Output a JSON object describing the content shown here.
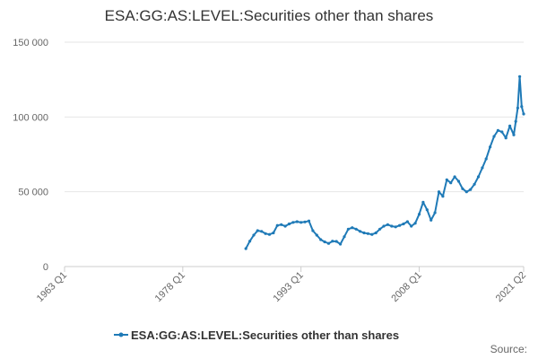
{
  "source_label": "Source:",
  "chart_data": {
    "type": "line",
    "title": "ESA:GG:AS:LEVEL:Securities other than shares",
    "xlabel": "",
    "ylabel": "",
    "x_tick_labels": [
      "1963 Q1",
      "1978 Q1",
      "1993 Q1",
      "2008 Q1",
      "2021 Q2"
    ],
    "x_tick_years": [
      1963.0,
      1978.0,
      1993.0,
      2008.0,
      2021.25
    ],
    "ylim": [
      0,
      150000
    ],
    "y_ticks": [
      0,
      50000,
      100000,
      150000
    ],
    "y_tick_labels": [
      "0",
      "50 000",
      "100 000",
      "150 000"
    ],
    "grid": true,
    "legend_position": "bottom",
    "series": [
      {
        "name": "ESA:GG:AS:LEVEL:Securities other than shares",
        "color": "#1f7ab7",
        "x": [
          1986.0,
          1986.5,
          1987.0,
          1987.5,
          1988.0,
          1988.5,
          1989.0,
          1989.5,
          1990.0,
          1990.5,
          1991.0,
          1991.5,
          1992.0,
          1992.5,
          1993.0,
          1993.5,
          1994.0,
          1994.5,
          1995.0,
          1995.5,
          1996.0,
          1996.5,
          1997.0,
          1997.5,
          1998.0,
          1998.5,
          1999.0,
          1999.5,
          2000.0,
          2000.5,
          2001.0,
          2001.5,
          2002.0,
          2002.5,
          2003.0,
          2003.5,
          2004.0,
          2004.5,
          2005.0,
          2005.5,
          2006.0,
          2006.5,
          2007.0,
          2007.5,
          2008.0,
          2008.5,
          2009.0,
          2009.5,
          2010.0,
          2010.5,
          2011.0,
          2011.5,
          2012.0,
          2012.5,
          2013.0,
          2013.5,
          2014.0,
          2014.5,
          2015.0,
          2015.5,
          2016.0,
          2016.5,
          2017.0,
          2017.5,
          2018.0,
          2018.5,
          2019.0,
          2019.5,
          2020.0,
          2020.25,
          2020.5,
          2020.75,
          2021.0,
          2021.25
        ],
        "values": [
          12000,
          17000,
          21000,
          24000,
          23500,
          22000,
          21500,
          22500,
          27500,
          28000,
          27000,
          28500,
          29500,
          30000,
          29500,
          29800,
          30500,
          24000,
          21000,
          18000,
          16500,
          15500,
          17000,
          16800,
          15000,
          20000,
          25000,
          26000,
          25000,
          23500,
          22500,
          22000,
          21500,
          22500,
          25000,
          27000,
          28000,
          27000,
          26500,
          27500,
          28500,
          30000,
          27000,
          29000,
          35000,
          43000,
          38000,
          31000,
          36000,
          50000,
          47000,
          58000,
          56000,
          60000,
          57000,
          52000,
          50000,
          51500,
          55000,
          60000,
          66000,
          72000,
          80000,
          87000,
          91000,
          90000,
          86000,
          94000,
          88000,
          97000,
          106000,
          127000,
          107000,
          102000
        ]
      }
    ]
  }
}
